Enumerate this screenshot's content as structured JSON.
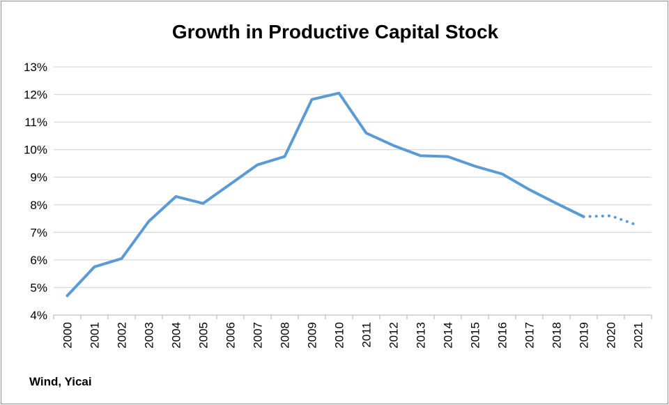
{
  "chart_data": {
    "type": "line",
    "title": "Growth in Productive Capital Stock",
    "source": "Wind, Yicai",
    "xlabel": "",
    "ylabel": "",
    "x": [
      "2000",
      "2001",
      "2002",
      "2003",
      "2004",
      "2005",
      "2006",
      "2007",
      "2008",
      "2009",
      "2010",
      "2011",
      "2012",
      "2013",
      "2014",
      "2015",
      "2016",
      "2017",
      "2018",
      "2019",
      "2020",
      "2021"
    ],
    "ylim": [
      4,
      13
    ],
    "yticks": [
      "4%",
      "5%",
      "6%",
      "7%",
      "8%",
      "9%",
      "10%",
      "11%",
      "12%",
      "13%"
    ],
    "grid": "horizontal",
    "series": [
      {
        "values": [
          4.7,
          5.75,
          6.05,
          7.4,
          8.3,
          8.05,
          8.75,
          9.45,
          9.75,
          11.82,
          12.05,
          10.6,
          10.15,
          9.78,
          9.75,
          9.4,
          9.12,
          8.55,
          8.05,
          7.57,
          null,
          null
        ],
        "style": "solid",
        "color": "#5b9bd5"
      },
      {
        "values": [
          null,
          null,
          null,
          null,
          null,
          null,
          null,
          null,
          null,
          null,
          null,
          null,
          null,
          null,
          null,
          null,
          null,
          null,
          null,
          7.57,
          7.6,
          7.25
        ],
        "style": "dotted",
        "color": "#5b9bd5"
      }
    ]
  },
  "colors": {
    "line": "#5b9bd5",
    "grid": "#d9d9d9",
    "axis": "#bfbfbf",
    "frame": "#8c8c8c"
  }
}
